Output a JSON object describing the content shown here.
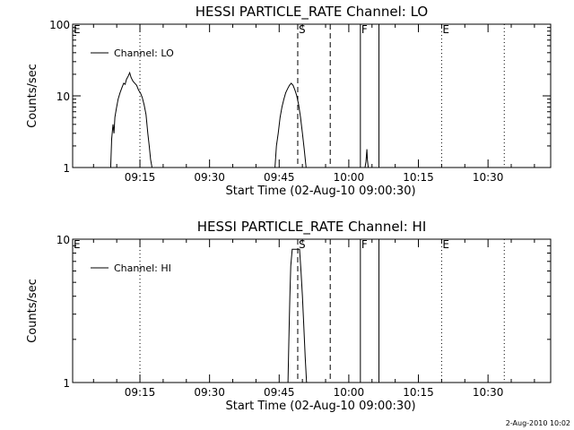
{
  "chart_data": [
    {
      "type": "line",
      "title": "HESSI PARTICLE_RATE Channel: LO",
      "xlabel": "Start Time (02-Aug-10 09:00:30)",
      "ylabel": "Counts/sec",
      "y_scale": "log",
      "ylim": [
        1,
        100
      ],
      "y_ticks": [
        1,
        10,
        100
      ],
      "y_tick_labels": [
        "1",
        "10",
        "100"
      ],
      "xlim_minutes": [
        0,
        103
      ],
      "x_ticks": [
        14.5,
        29.5,
        44.5,
        59.5,
        74.5,
        89.5
      ],
      "x_tick_labels": [
        "09:15",
        "09:30",
        "09:45",
        "10:00",
        "10:15",
        "10:30"
      ],
      "legend": {
        "position": "top-left",
        "entries": [
          "Channel: LO"
        ]
      },
      "markers": [
        {
          "minute": 0,
          "label": "E",
          "style": "dotted",
          "show_line": false
        },
        {
          "minute": 14.5,
          "label": "",
          "style": "dotted",
          "show_line": true
        },
        {
          "minute": 48.5,
          "label": "S",
          "style": "dashed",
          "show_line": true
        },
        {
          "minute": 55.5,
          "label": "",
          "style": "dashed",
          "show_line": true
        },
        {
          "minute": 62,
          "label": "F",
          "style": "solid",
          "show_line": true
        },
        {
          "minute": 66,
          "label": "",
          "style": "solid",
          "show_line": true
        },
        {
          "minute": 79.5,
          "label": "E",
          "style": "dotted",
          "show_line": true
        },
        {
          "minute": 93,
          "label": "",
          "style": "dotted",
          "show_line": true
        }
      ],
      "series": [
        {
          "segments": [
            [
              [
                8.2,
                1
              ],
              [
                8.4,
                2.5
              ],
              [
                8.7,
                4
              ],
              [
                8.9,
                3
              ],
              [
                9.1,
                5
              ],
              [
                9.4,
                6.5
              ],
              [
                9.8,
                9
              ],
              [
                10.2,
                11
              ],
              [
                10.6,
                13
              ],
              [
                11.0,
                15
              ],
              [
                11.3,
                14.5
              ],
              [
                11.6,
                17
              ],
              [
                12.0,
                19
              ],
              [
                12.3,
                21
              ],
              [
                12.6,
                18
              ],
              [
                13.0,
                16
              ],
              [
                13.4,
                15
              ],
              [
                13.8,
                14
              ],
              [
                14.2,
                12
              ],
              [
                14.6,
                11
              ],
              [
                15.0,
                9.5
              ],
              [
                15.4,
                7.5
              ],
              [
                15.8,
                5.5
              ],
              [
                16.2,
                3
              ],
              [
                16.5,
                2
              ],
              [
                16.8,
                1.3
              ],
              [
                17.1,
                1
              ]
            ],
            [
              [
                43.6,
                1
              ],
              [
                43.9,
                2
              ],
              [
                44.3,
                3
              ],
              [
                44.7,
                5
              ],
              [
                45.1,
                7
              ],
              [
                45.5,
                9
              ],
              [
                45.9,
                11
              ],
              [
                46.3,
                12.5
              ],
              [
                46.7,
                14
              ],
              [
                47.1,
                15
              ],
              [
                47.5,
                14
              ],
              [
                47.9,
                12
              ],
              [
                48.3,
                10
              ],
              [
                48.7,
                7.5
              ],
              [
                49.1,
                5
              ],
              [
                49.5,
                3
              ],
              [
                49.9,
                1.8
              ],
              [
                50.3,
                1
              ]
            ],
            [
              [
                63.0,
                1
              ],
              [
                63.2,
                1.2
              ],
              [
                63.4,
                1.8
              ],
              [
                63.5,
                1.3
              ],
              [
                63.7,
                1
              ]
            ]
          ]
        }
      ]
    },
    {
      "type": "line",
      "title": "HESSI PARTICLE_RATE Channel: HI",
      "xlabel": "Start Time (02-Aug-10 09:00:30)",
      "ylabel": "Counts/sec",
      "y_scale": "log",
      "ylim": [
        1,
        10
      ],
      "y_ticks": [
        1,
        10
      ],
      "y_tick_labels": [
        "1",
        "10"
      ],
      "xlim_minutes": [
        0,
        103
      ],
      "x_ticks": [
        14.5,
        29.5,
        44.5,
        59.5,
        74.5,
        89.5
      ],
      "x_tick_labels": [
        "09:15",
        "09:30",
        "09:45",
        "10:00",
        "10:15",
        "10:30"
      ],
      "legend": {
        "position": "top-left",
        "entries": [
          "Channel: HI"
        ]
      },
      "markers": [
        {
          "minute": 0,
          "label": "E",
          "style": "dotted",
          "show_line": false
        },
        {
          "minute": 14.5,
          "label": "",
          "style": "dotted",
          "show_line": true
        },
        {
          "minute": 48.5,
          "label": "S",
          "style": "dashed",
          "show_line": true
        },
        {
          "minute": 55.5,
          "label": "",
          "style": "dashed",
          "show_line": true
        },
        {
          "minute": 62,
          "label": "F",
          "style": "solid",
          "show_line": true
        },
        {
          "minute": 66,
          "label": "",
          "style": "solid",
          "show_line": true
        },
        {
          "minute": 79.5,
          "label": "E",
          "style": "dotted",
          "show_line": true
        },
        {
          "minute": 93,
          "label": "",
          "style": "dotted",
          "show_line": true
        }
      ],
      "series": [
        {
          "segments": [
            [
              [
                46.4,
                1
              ],
              [
                46.6,
                2
              ],
              [
                46.8,
                4
              ],
              [
                47.0,
                6.5
              ],
              [
                47.3,
                8.5
              ],
              [
                48.9,
                8.5
              ],
              [
                49.2,
                6
              ],
              [
                49.5,
                4
              ],
              [
                49.8,
                2.5
              ],
              [
                50.1,
                1.5
              ],
              [
                50.4,
                1
              ]
            ]
          ]
        }
      ]
    }
  ],
  "timestamp": "2-Aug-2010 10:02"
}
